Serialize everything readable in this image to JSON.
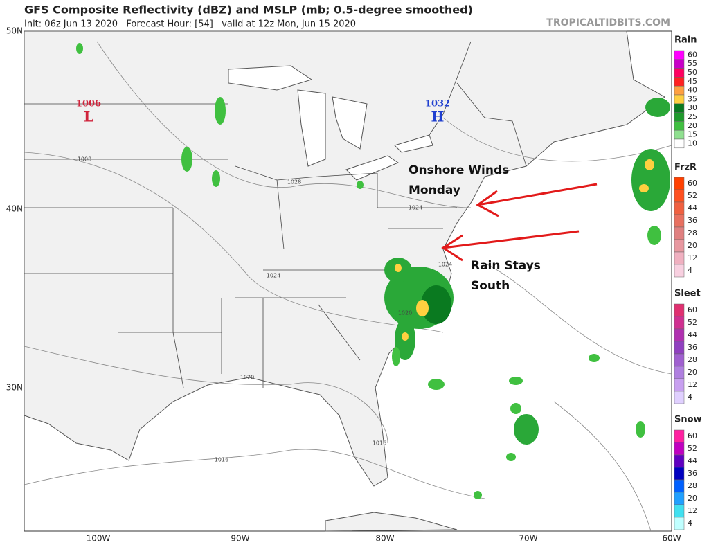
{
  "header": {
    "title": "GFS Composite Reflectivity (dBZ) and MSLP (mb; 0.5-degree smoothed)",
    "subtitle": "Init: 06z Jun 13 2020   Forecast Hour: [54]   valid at 12z Mon, Jun 15 2020",
    "watermark": "TROPICALTIDBITS.COM"
  },
  "axes": {
    "lat_labels": [
      "50N",
      "40N",
      "30N"
    ],
    "lon_labels": [
      "100W",
      "90W",
      "80W",
      "70W",
      "60W"
    ]
  },
  "pressure_centers": [
    {
      "value": "1006",
      "symbol": "L"
    },
    {
      "value": "1032",
      "symbol": "H"
    }
  ],
  "isobar_labels": [
    "1008",
    "1028",
    "1024",
    "1024",
    "1020",
    "1016",
    "1016",
    "1020",
    "1024"
  ],
  "annotations": [
    {
      "lines": [
        "Onshore Winds",
        "Monday"
      ]
    },
    {
      "lines": [
        "Rain Stays",
        "South"
      ]
    }
  ],
  "legend": [
    {
      "title": "Rain",
      "levels": [
        "60",
        "55",
        "50",
        "45",
        "40",
        "35",
        "30",
        "25",
        "20",
        "15",
        "10"
      ]
    },
    {
      "title": "FrzR",
      "levels": [
        "60",
        "52",
        "44",
        "36",
        "28",
        "20",
        "12",
        "4"
      ]
    },
    {
      "title": "Sleet",
      "levels": [
        "60",
        "52",
        "44",
        "36",
        "28",
        "20",
        "12",
        "4"
      ]
    },
    {
      "title": "Snow",
      "levels": [
        "60",
        "52",
        "44",
        "36",
        "28",
        "20",
        "12",
        "4"
      ]
    }
  ]
}
